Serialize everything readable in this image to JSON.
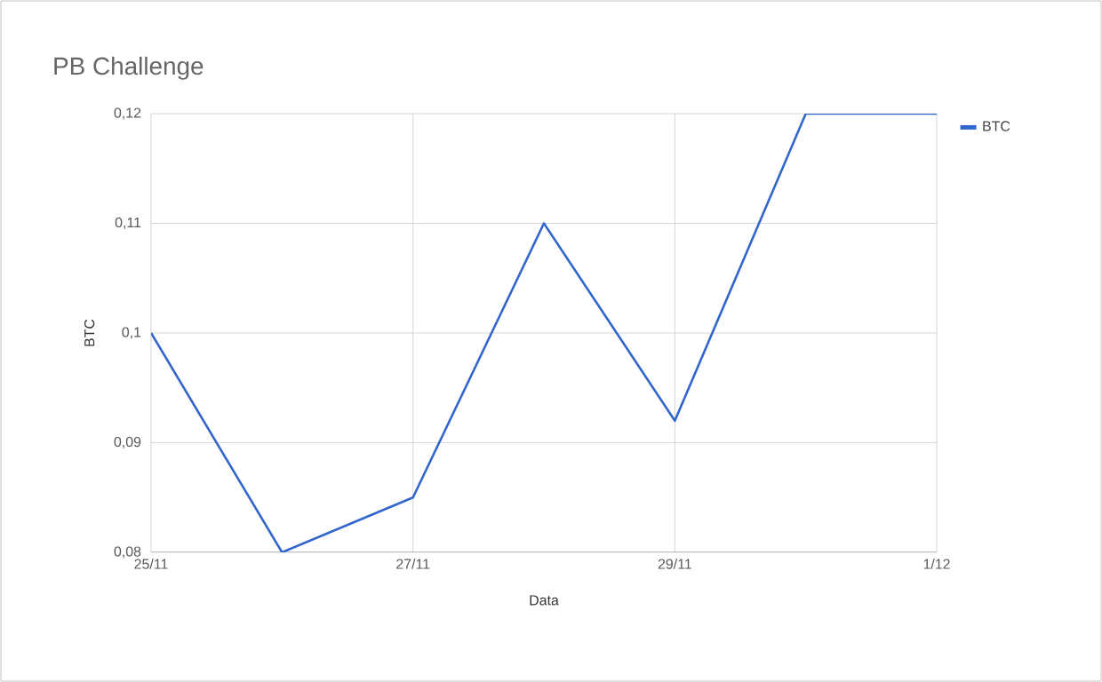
{
  "chart_data": {
    "type": "line",
    "title": "PB Challenge",
    "xlabel": "Data",
    "ylabel": "BTC",
    "categories": [
      "25/11",
      null,
      "27/11",
      null,
      "29/11",
      null,
      "1/12"
    ],
    "series": [
      {
        "name": "BTC",
        "color": "#3366cc",
        "values": [
          0.1,
          0.08,
          0.085,
          0.11,
          0.092,
          0.12,
          0.12
        ]
      }
    ],
    "ylim": [
      0.08,
      0.12
    ],
    "yticks": [
      {
        "value": 0.08,
        "label": "0,08"
      },
      {
        "value": 0.09,
        "label": "0,09"
      },
      {
        "value": 0.1,
        "label": "0,1"
      },
      {
        "value": 0.11,
        "label": "0,11"
      },
      {
        "value": 0.12,
        "label": "0,12"
      }
    ],
    "grid": true,
    "legend": "top right",
    "marker": "none",
    "line_style": "solid"
  }
}
